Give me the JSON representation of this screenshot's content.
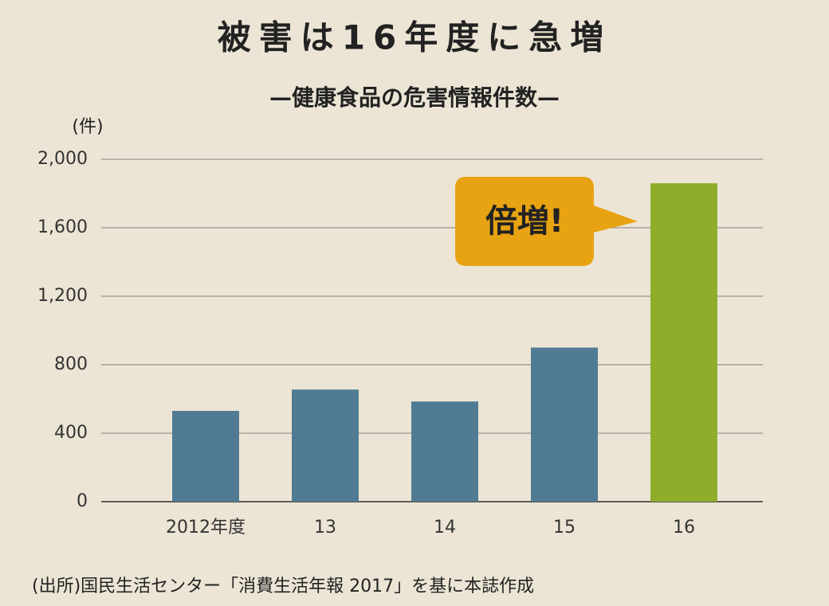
{
  "chart_data": {
    "type": "bar",
    "title": "被害は16年度に急増",
    "subtitle": "—健康食品の危害情報件数—",
    "y_label": "(件)",
    "annotation": "倍増!",
    "source": "(出所)国民生活センター「消費生活年報 2017」を基に本誌作成",
    "categories": [
      "2012年度",
      "13",
      "14",
      "15",
      "16"
    ],
    "values": [
      530,
      655,
      585,
      900,
      1860
    ],
    "colors": [
      "#507b93",
      "#507b93",
      "#507b93",
      "#507b93",
      "#8fad2b"
    ],
    "ylim": [
      0,
      2000
    ],
    "yticks": [
      0,
      400,
      800,
      {
        "value": 1200,
        "label": "1,200"
      },
      {
        "value": 1600,
        "label": "1,600"
      },
      {
        "value": 2000,
        "label": "2,000"
      }
    ],
    "grid": true
  }
}
